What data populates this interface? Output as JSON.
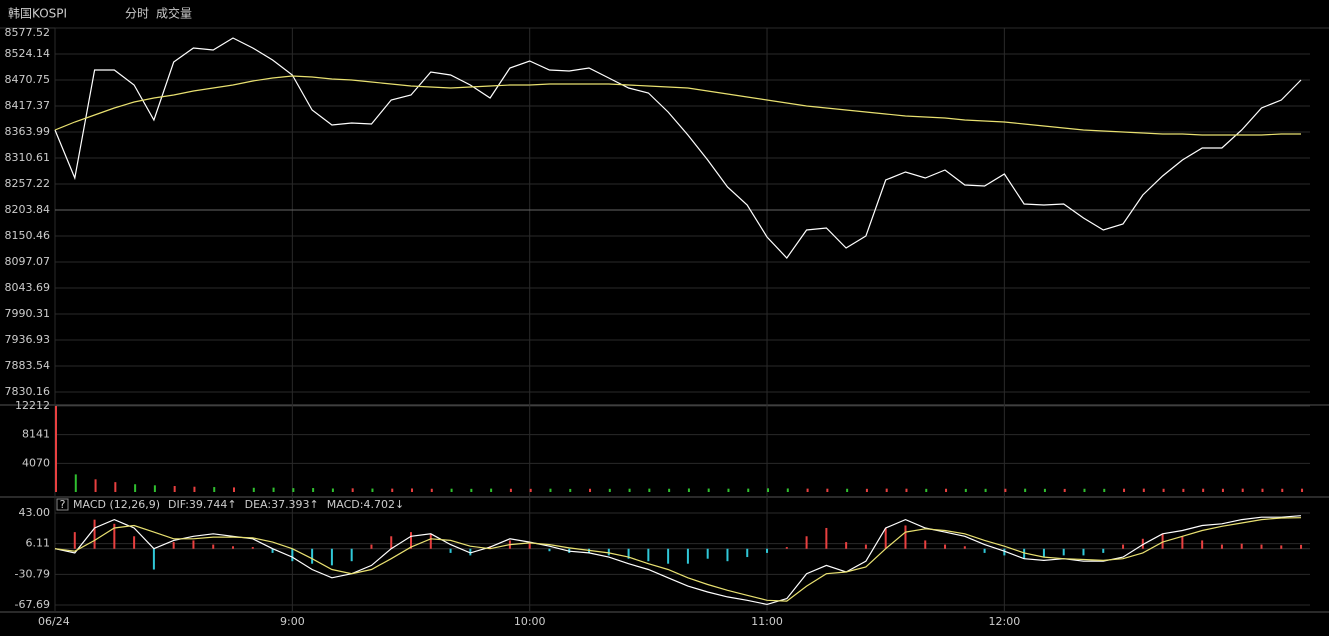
{
  "header": {
    "title": "韩国KOSPI",
    "tabs": [
      "分时",
      "成交量"
    ]
  },
  "chart_data": [
    {
      "type": "line",
      "x": [
        0,
        5,
        10,
        15,
        20,
        25,
        30,
        35,
        40,
        45,
        50,
        55,
        60,
        65,
        70,
        75,
        80,
        85,
        90,
        95,
        100,
        105,
        110,
        115,
        120,
        125,
        130,
        135,
        140,
        145,
        150,
        155,
        160,
        165,
        170,
        175,
        180,
        185,
        190,
        195,
        200,
        205,
        210,
        215,
        220,
        225,
        230,
        235,
        240,
        245,
        250,
        255,
        260,
        265,
        270,
        275,
        280,
        285,
        290,
        295,
        300,
        305,
        310,
        315
      ],
      "xlim": [
        0,
        316
      ],
      "xticks": [
        {
          "value": 0,
          "label": "06/24"
        },
        {
          "value": 60,
          "label": "9:00"
        },
        {
          "value": 120,
          "label": "10:00"
        },
        {
          "value": 180,
          "label": "11:00"
        },
        {
          "value": 240,
          "label": "12:00"
        }
      ],
      "ylim": [
        7830.16,
        8577.52
      ],
      "yticks": [
        8577.52,
        8524.14,
        8470.75,
        8417.37,
        8363.99,
        8310.61,
        8257.22,
        8203.84,
        8150.46,
        8097.07,
        8043.69,
        7990.31,
        7936.93,
        7883.54,
        7830.16
      ],
      "grid": true,
      "series": [
        {
          "color": "#ffffff",
          "values": [
            8368.1,
            8269.6,
            8491.3,
            8491.3,
            8460.5,
            8388.6,
            8507.7,
            8536.5,
            8532.4,
            8557.0,
            8536.5,
            8511.8,
            8481.0,
            8409.2,
            8378.4,
            8382.5,
            8380.4,
            8429.7,
            8440.0,
            8487.2,
            8481.0,
            8460.5,
            8433.8,
            8495.4,
            8509.8,
            8491.3,
            8489.2,
            8495.4,
            8474.9,
            8454.3,
            8444.0,
            8405.1,
            8357.9,
            8306.5,
            8251.1,
            8214.1,
            8148.4,
            8105.3,
            8162.8,
            8166.9,
            8125.9,
            8150.5,
            8265.5,
            8281.9,
            8269.6,
            8286.0,
            8255.2,
            8253.1,
            8277.8,
            8216.2,
            8214.1,
            8216.2,
            8187.4,
            8162.8,
            8175.1,
            8234.7,
            8273.7,
            8306.5,
            8331.2,
            8331.2,
            8368.1,
            8413.3,
            8429.7,
            8470.8
          ]
        },
        {
          "color": "#e8e070",
          "values": [
            8368.1,
            8384.5,
            8398.9,
            8413.3,
            8425.6,
            8433.8,
            8440.0,
            8448.2,
            8454.3,
            8460.5,
            8468.7,
            8474.9,
            8479.0,
            8476.9,
            8472.8,
            8470.8,
            8466.7,
            8462.5,
            8458.4,
            8456.4,
            8454.3,
            8456.4,
            8458.4,
            8460.5,
            8460.5,
            8462.5,
            8462.5,
            8462.5,
            8462.5,
            8460.5,
            8458.4,
            8456.4,
            8454.3,
            8448.2,
            8442.0,
            8435.9,
            8429.7,
            8423.5,
            8417.4,
            8413.3,
            8409.2,
            8405.1,
            8401.0,
            8396.9,
            8394.8,
            8392.8,
            8388.6,
            8386.6,
            8384.5,
            8380.4,
            8376.3,
            8372.2,
            8368.1,
            8366.1,
            8364.0,
            8361.9,
            8359.9,
            8359.9,
            8357.8,
            8357.8,
            8357.8,
            8357.8,
            8359.9,
            8359.9
          ]
        }
      ]
    },
    {
      "type": "bar",
      "ylim": [
        0,
        12212
      ],
      "yticks": [
        12212,
        8141,
        4070
      ],
      "up_color": "#e84040",
      "down_color": "#30c030",
      "values": [
        12212,
        2500,
        1800,
        1400,
        1100,
        950,
        850,
        750,
        700,
        650,
        600,
        620,
        550,
        560,
        500,
        520,
        490,
        480,
        500,
        460,
        470,
        450,
        480,
        460,
        450,
        470,
        440,
        460,
        450,
        470,
        480,
        460,
        500,
        490,
        470,
        480,
        520,
        500,
        480,
        470,
        460,
        450,
        480,
        470,
        450,
        460,
        440,
        450,
        460,
        470,
        450,
        440,
        460,
        450,
        470,
        480,
        460,
        450,
        470,
        460,
        480,
        470,
        460,
        470
      ]
    },
    {
      "type": "macd",
      "title": "MACD (12,26,9)",
      "help": "?",
      "ylim": [
        -67.69,
        43
      ],
      "yticks": [
        {
          "value": 43,
          "label": "43.00"
        },
        6.11,
        -30.79,
        -67.69
      ],
      "up_color": "#e84040",
      "down_color": "#30c8d8",
      "series": [
        {
          "label": "DIF:39.744↑",
          "color": "#ffffff",
          "values": [
            0,
            -5,
            25,
            35,
            25,
            0,
            10,
            15,
            18,
            15,
            12,
            0,
            -10,
            -25,
            -35,
            -30,
            -20,
            0,
            15,
            18,
            5,
            -5,
            2,
            12,
            8,
            3,
            -3,
            -5,
            -10,
            -18,
            -25,
            -35,
            -45,
            -52,
            -58,
            -62,
            -67,
            -60,
            -30,
            -20,
            -28,
            -15,
            25,
            35,
            25,
            20,
            15,
            5,
            -3,
            -12,
            -14,
            -12,
            -15,
            -15,
            -10,
            5,
            18,
            22,
            28,
            30,
            35,
            38,
            38,
            39.744
          ]
        },
        {
          "label": "DEA:37.393↑",
          "color": "#e8e070",
          "values": [
            0,
            -3,
            10,
            25,
            28,
            20,
            12,
            12,
            14,
            14,
            13,
            8,
            0,
            -12,
            -25,
            -30,
            -25,
            -12,
            2,
            12,
            10,
            3,
            0,
            5,
            7,
            5,
            1,
            -2,
            -5,
            -10,
            -18,
            -25,
            -35,
            -43,
            -50,
            -56,
            -62,
            -63,
            -45,
            -30,
            -28,
            -22,
            0,
            20,
            24,
            22,
            18,
            10,
            3,
            -5,
            -10,
            -12,
            -13,
            -14,
            -12,
            -5,
            8,
            15,
            22,
            27,
            31,
            35,
            37,
            37.393
          ]
        },
        {
          "label": "MACD:4.702↓",
          "color": "#e84040",
          "values": [
            0,
            20,
            35,
            30,
            15,
            -25,
            8,
            10,
            5,
            3,
            2,
            -5,
            -15,
            -18,
            -20,
            -15,
            5,
            15,
            20,
            18,
            -5,
            -8,
            3,
            10,
            8,
            -3,
            -5,
            -5,
            -8,
            -12,
            -15,
            -18,
            -18,
            -12,
            -15,
            -10,
            -5,
            2,
            15,
            25,
            8,
            5,
            25,
            28,
            10,
            5,
            3,
            -5,
            -8,
            -12,
            -10,
            -8,
            -8,
            -5,
            5,
            12,
            18,
            15,
            10,
            5,
            6,
            5,
            4,
            4.702
          ]
        }
      ]
    }
  ]
}
